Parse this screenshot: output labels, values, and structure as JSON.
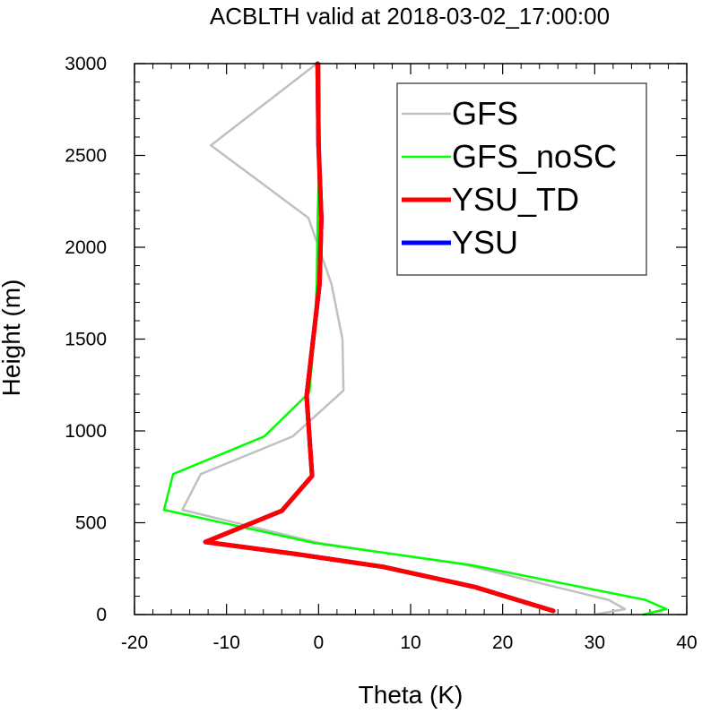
{
  "chart_data": {
    "type": "line",
    "title": "ACBLTH valid at 2018-03-02_17:00:00",
    "xlabel": "Theta (K)",
    "ylabel": "Height (m)",
    "xlim": [
      -20,
      40
    ],
    "ylim": [
      0,
      3000
    ],
    "xticks": [
      -20,
      -10,
      0,
      10,
      20,
      30,
      40
    ],
    "xtick_labels": [
      "-20",
      "-10",
      "0",
      "10",
      "20",
      "30",
      "40"
    ],
    "yticks": [
      0,
      500,
      1000,
      1500,
      2000,
      2500,
      3000
    ],
    "ytick_labels": [
      "0",
      "500",
      "1000",
      "1500",
      "2000",
      "2500",
      "3000"
    ],
    "grid": false,
    "legend_position": "top-right",
    "series": [
      {
        "name": "GFS",
        "color": "#c0c0c0",
        "points": [
          [
            30,
            0
          ],
          [
            33.3,
            30
          ],
          [
            31.5,
            80
          ],
          [
            16,
            270
          ],
          [
            0,
            390
          ],
          [
            -14.8,
            570
          ],
          [
            -12.8,
            765
          ],
          [
            -2.8,
            970
          ],
          [
            2.7,
            1220
          ],
          [
            2.6,
            1500
          ],
          [
            1.4,
            1800
          ],
          [
            -1.1,
            2160
          ],
          [
            -11.7,
            2555
          ],
          [
            -0.2,
            3000
          ]
        ]
      },
      {
        "name": "GFS_noSC",
        "color": "#00ff00",
        "points": [
          [
            35.3,
            0
          ],
          [
            37.8,
            30
          ],
          [
            35.5,
            80
          ],
          [
            16.5,
            270
          ],
          [
            -0.5,
            390
          ],
          [
            -16.8,
            570
          ],
          [
            -15.8,
            765
          ],
          [
            -5.9,
            970
          ],
          [
            -1.0,
            1210
          ],
          [
            -0.5,
            1500
          ],
          [
            -0.2,
            1800
          ],
          [
            -0.1,
            2160
          ],
          [
            0.1,
            2555
          ],
          [
            0.1,
            3000
          ]
        ]
      },
      {
        "name": "YSU_TD",
        "color": "#ff0000",
        "points": [
          [
            25.5,
            20
          ],
          [
            17,
            150
          ],
          [
            7,
            260
          ],
          [
            -2.5,
            330
          ],
          [
            -12.3,
            395
          ],
          [
            -4,
            565
          ],
          [
            -0.7,
            755
          ],
          [
            -1.3,
            1190
          ],
          [
            0.1,
            1800
          ],
          [
            0.3,
            2160
          ],
          [
            0,
            2555
          ],
          [
            -0.1,
            3000
          ]
        ]
      },
      {
        "name": "YSU",
        "color": "#0000ff",
        "points": [
          [
            25.5,
            20
          ],
          [
            17,
            150
          ],
          [
            7,
            260
          ],
          [
            -2.5,
            330
          ],
          [
            -12.3,
            395
          ],
          [
            -4,
            565
          ],
          [
            -0.7,
            755
          ],
          [
            -1.3,
            1190
          ],
          [
            0.1,
            1800
          ],
          [
            0.3,
            2160
          ],
          [
            0,
            2555
          ],
          [
            -0.1,
            3000
          ]
        ]
      }
    ]
  }
}
